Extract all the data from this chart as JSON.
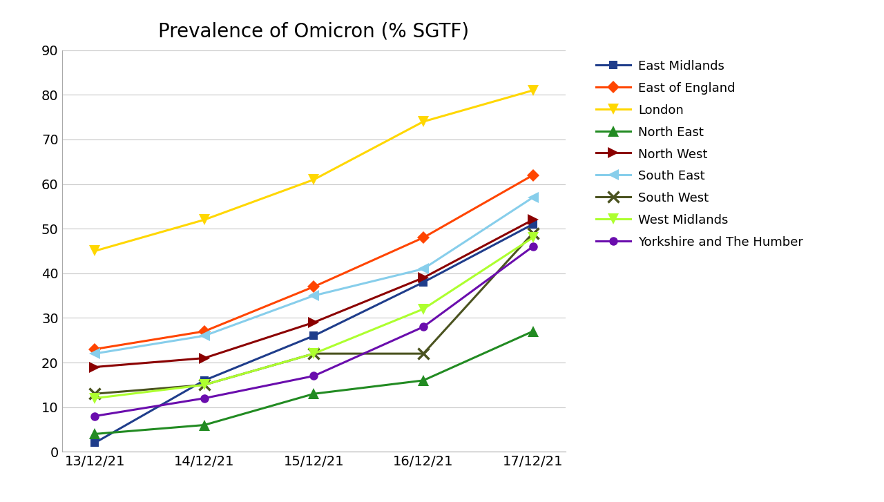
{
  "title": "Prevalence of Omicron (% SGTF)",
  "x_labels": [
    "13/12/21",
    "14/12/21",
    "15/12/21",
    "16/12/21",
    "17/12/21"
  ],
  "ylim": [
    0,
    90
  ],
  "yticks": [
    0,
    10,
    20,
    30,
    40,
    50,
    60,
    70,
    80,
    90
  ],
  "series": [
    {
      "name": "East Midlands",
      "color": "#1F3D8B",
      "marker": "s",
      "values": [
        2,
        16,
        26,
        38,
        51
      ]
    },
    {
      "name": "East of England",
      "color": "#FF4500",
      "marker": "D",
      "values": [
        23,
        27,
        37,
        48,
        62
      ]
    },
    {
      "name": "London",
      "color": "#FFD700",
      "marker": "v",
      "values": [
        45,
        52,
        61,
        74,
        81
      ]
    },
    {
      "name": "North East",
      "color": "#228B22",
      "marker": "^",
      "values": [
        4,
        6,
        13,
        16,
        27
      ]
    },
    {
      "name": "North West",
      "color": "#8B0000",
      "marker": ">",
      "values": [
        19,
        21,
        29,
        39,
        52
      ]
    },
    {
      "name": "South East",
      "color": "#87CEEB",
      "marker": "<",
      "values": [
        22,
        26,
        35,
        41,
        57
      ]
    },
    {
      "name": "South West",
      "color": "#4B5320",
      "marker": "x",
      "values": [
        13,
        15,
        22,
        22,
        49
      ]
    },
    {
      "name": "West Midlands",
      "color": "#ADFF2F",
      "marker": "v",
      "values": [
        12,
        15,
        22,
        32,
        48
      ]
    },
    {
      "name": "Yorkshire and The Humber",
      "color": "#6A0DAD",
      "marker": "o",
      "values": [
        8,
        12,
        17,
        28,
        46
      ]
    }
  ],
  "background_color": "#FFFFFF",
  "grid_color": "#C8C8C8",
  "title_fontsize": 20,
  "tick_fontsize": 14,
  "legend_fontsize": 13,
  "linewidth": 2.2
}
